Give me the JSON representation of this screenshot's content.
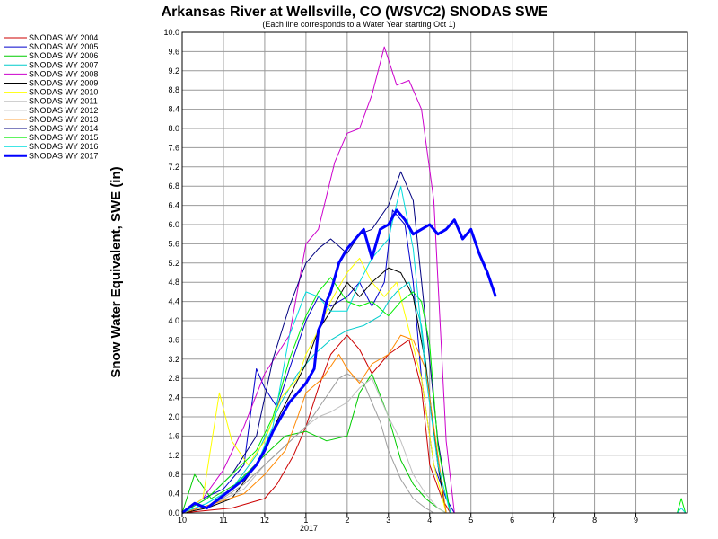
{
  "chart_data": {
    "type": "line",
    "title": "Arkansas River at Wellsville, CO (WSVC2) SNODAS SWE",
    "subtitle": "(Each line corresponds to a Water Year starting Oct 1)",
    "ylabel": "Snow Water Equivalent, SWE (in)",
    "xlabel": "",
    "year_label": "2017",
    "ylim": [
      0,
      10
    ],
    "yticks": [
      "0.0",
      "0.4",
      "0.8",
      "1.2",
      "1.6",
      "2.0",
      "2.4",
      "2.8",
      "3.2",
      "3.6",
      "4.0",
      "4.4",
      "4.8",
      "5.2",
      "5.6",
      "6.0",
      "6.4",
      "6.8",
      "7.2",
      "7.6",
      "8.0",
      "8.4",
      "8.8",
      "9.2",
      "9.6",
      "10.0"
    ],
    "xticks": [
      "10",
      "11",
      "12",
      "1",
      "2",
      "3",
      "4",
      "5",
      "6",
      "7",
      "8",
      "9"
    ],
    "x_unit": "months since Oct 1",
    "xlim": [
      0,
      12.25
    ],
    "grid": true,
    "legend_placement": "left",
    "series": [
      {
        "name": "SNODAS WY 2004",
        "color": "#cc0000",
        "width": 1,
        "x": [
          0,
          1.2,
          2.0,
          2.3,
          2.7,
          3.0,
          3.3,
          3.6,
          4.0,
          4.3,
          4.6,
          5.0,
          5.5,
          5.8,
          6.0,
          6.3,
          6.5
        ],
        "y": [
          0,
          0.1,
          0.3,
          0.6,
          1.2,
          1.8,
          2.6,
          3.3,
          3.7,
          3.4,
          2.9,
          3.3,
          3.6,
          2.6,
          1.0,
          0.3,
          0
        ]
      },
      {
        "name": "SNODAS WY 2005",
        "color": "#0000cc",
        "width": 1,
        "x": [
          0,
          0.5,
          1.0,
          1.5,
          1.8,
          2.0,
          2.3,
          2.6,
          3.0,
          3.3,
          3.6,
          4.0,
          4.3,
          4.6,
          4.9,
          5.1,
          5.4,
          5.6,
          5.8,
          6.1,
          6.4,
          6.6
        ],
        "y": [
          0,
          0.3,
          0.5,
          1.0,
          3.0,
          2.6,
          2.2,
          3.0,
          4.0,
          4.5,
          4.3,
          4.5,
          4.8,
          4.3,
          4.8,
          6.3,
          6.0,
          4.8,
          2.8,
          1.0,
          0.3,
          0
        ]
      },
      {
        "name": "SNODAS WY 2006",
        "color": "#00cc00",
        "width": 1,
        "x": [
          0,
          0.3,
          0.7,
          1.3,
          2.0,
          2.5,
          3.0,
          3.5,
          4.0,
          4.3,
          4.6,
          5.0,
          5.3,
          5.6,
          5.9,
          6.2,
          6.4
        ],
        "y": [
          0,
          0.8,
          0.3,
          0.6,
          1.2,
          1.6,
          1.7,
          1.5,
          1.6,
          2.5,
          2.9,
          2.0,
          1.1,
          0.6,
          0.3,
          0.1,
          0
        ]
      },
      {
        "name": "SNODAS WY 2007",
        "color": "#00cccc",
        "width": 1,
        "x": [
          0,
          0.6,
          1.2,
          1.8,
          2.4,
          2.8,
          3.2,
          3.6,
          4.0,
          4.4,
          4.8,
          5.0,
          5.2,
          5.5,
          5.8,
          6.1,
          6.4
        ],
        "y": [
          0,
          0.2,
          0.5,
          1.2,
          2.3,
          2.9,
          3.3,
          3.6,
          3.8,
          3.9,
          4.1,
          4.4,
          4.6,
          4.8,
          3.9,
          1.7,
          0
        ]
      },
      {
        "name": "SNODAS WY 2008",
        "color": "#cc00cc",
        "width": 1,
        "x": [
          0,
          0.5,
          1.0,
          1.5,
          2.0,
          2.3,
          2.6,
          3.0,
          3.3,
          3.5,
          3.7,
          4.0,
          4.3,
          4.6,
          4.9,
          5.2,
          5.5,
          5.8,
          6.1,
          6.4,
          6.6
        ],
        "y": [
          0,
          0.3,
          0.9,
          1.8,
          2.9,
          3.3,
          3.7,
          5.6,
          5.9,
          6.6,
          7.3,
          7.9,
          8.0,
          8.7,
          9.7,
          8.9,
          9.0,
          8.4,
          6.5,
          1.5,
          0
        ]
      },
      {
        "name": "SNODAS WY 2009",
        "color": "#000000",
        "width": 1,
        "x": [
          0,
          0.6,
          1.2,
          1.8,
          2.4,
          3.0,
          3.3,
          3.6,
          4.0,
          4.3,
          4.6,
          5.0,
          5.3,
          5.6,
          5.9,
          6.2,
          6.4
        ],
        "y": [
          0,
          0.1,
          0.3,
          1.0,
          2.1,
          3.1,
          3.8,
          4.2,
          4.8,
          4.5,
          4.8,
          5.1,
          5.0,
          4.5,
          3.1,
          1.0,
          0
        ]
      },
      {
        "name": "SNODAS WY 2010",
        "color": "#ffff00",
        "width": 1,
        "x": [
          0,
          0.5,
          0.9,
          1.2,
          1.6,
          2.0,
          2.4,
          2.8,
          3.0,
          3.3,
          3.6,
          4.0,
          4.3,
          4.6,
          4.9,
          5.2,
          5.5,
          5.8,
          6.1,
          6.4
        ],
        "y": [
          0,
          0.3,
          2.5,
          1.5,
          1.0,
          1.5,
          2.4,
          2.8,
          3.3,
          3.8,
          4.4,
          5.0,
          5.3,
          4.8,
          4.5,
          4.8,
          3.8,
          2.8,
          1.0,
          0
        ]
      },
      {
        "name": "SNODAS WY 2011",
        "color": "#c0c0c0",
        "width": 1,
        "x": [
          0,
          0.8,
          1.5,
          2.0,
          2.5,
          3.0,
          3.3,
          3.6,
          4.0,
          4.3,
          4.6,
          5.0,
          5.3,
          5.6,
          5.9,
          6.2,
          6.4
        ],
        "y": [
          0,
          0.2,
          0.5,
          1.0,
          1.4,
          1.8,
          2.0,
          2.1,
          2.3,
          2.6,
          2.8,
          2.0,
          1.5,
          0.8,
          0.4,
          0.1,
          0
        ]
      },
      {
        "name": "SNODAS WY 2012",
        "color": "#9d9d9d",
        "width": 1,
        "x": [
          0,
          0.8,
          1.5,
          2.0,
          2.5,
          3.0,
          3.4,
          3.8,
          4.0,
          4.4,
          4.8,
          5.0,
          5.3,
          5.6,
          5.9,
          6.1
        ],
        "y": [
          0,
          0.2,
          0.6,
          1.0,
          1.4,
          1.8,
          2.3,
          2.8,
          2.9,
          2.7,
          1.9,
          1.3,
          0.7,
          0.3,
          0.1,
          0
        ]
      },
      {
        "name": "SNODAS WY 2013",
        "color": "#ff8800",
        "width": 1,
        "x": [
          0,
          0.8,
          1.5,
          2.0,
          2.5,
          2.8,
          3.0,
          3.4,
          3.8,
          4.0,
          4.3,
          4.6,
          5.0,
          5.3,
          5.6,
          5.9,
          6.2,
          6.4
        ],
        "y": [
          0,
          0.2,
          0.4,
          0.8,
          1.3,
          2.0,
          2.5,
          2.8,
          3.3,
          3.0,
          2.7,
          3.1,
          3.3,
          3.7,
          3.6,
          3.0,
          1.2,
          0
        ]
      },
      {
        "name": "SNODAS WY 2014",
        "color": "#000080",
        "width": 1,
        "x": [
          0,
          0.6,
          1.2,
          1.8,
          2.2,
          2.6,
          3.0,
          3.3,
          3.6,
          4.0,
          4.3,
          4.6,
          5.0,
          5.3,
          5.6,
          5.9,
          6.2,
          6.5
        ],
        "y": [
          0,
          0.3,
          0.8,
          1.6,
          3.2,
          4.3,
          5.2,
          5.5,
          5.7,
          5.4,
          5.8,
          5.9,
          6.4,
          7.1,
          6.5,
          4.0,
          1.5,
          0
        ]
      },
      {
        "name": "SNODAS WY 2015",
        "color": "#00ee00",
        "width": 1,
        "x": [
          0,
          0.6,
          1.2,
          1.8,
          2.2,
          2.6,
          3.0,
          3.3,
          3.6,
          4.0,
          4.3,
          4.6,
          5.0,
          5.3,
          5.6,
          5.8,
          6.0,
          6.2,
          6.5,
          12.0,
          12.1,
          12.2
        ],
        "y": [
          0,
          0.3,
          0.8,
          1.3,
          2.0,
          3.2,
          4.1,
          4.6,
          4.9,
          4.4,
          4.3,
          4.4,
          4.1,
          4.4,
          4.6,
          4.4,
          3.5,
          1.4,
          0,
          0,
          0.3,
          0
        ]
      },
      {
        "name": "SNODAS WY 2016",
        "color": "#00dddd",
        "width": 1,
        "x": [
          0,
          0.6,
          1.2,
          1.8,
          2.2,
          2.6,
          3.0,
          3.3,
          3.6,
          4.0,
          4.3,
          4.6,
          5.0,
          5.3,
          5.6,
          5.9,
          6.2,
          6.5,
          12.0,
          12.1,
          12.2
        ],
        "y": [
          0,
          0.2,
          0.5,
          1.0,
          1.8,
          3.7,
          4.6,
          4.5,
          4.2,
          4.2,
          4.8,
          5.3,
          5.7,
          6.8,
          5.5,
          2.9,
          1.0,
          0,
          0,
          0.1,
          0
        ]
      },
      {
        "name": "SNODAS WY 2017",
        "color": "#0000ff",
        "width": 3,
        "x": [
          0,
          0.3,
          0.6,
          0.9,
          1.2,
          1.5,
          1.8,
          2.0,
          2.2,
          2.4,
          2.6,
          2.8,
          3.0,
          3.2,
          3.3,
          3.4,
          3.5,
          3.6,
          3.8,
          4.0,
          4.2,
          4.4,
          4.6,
          4.8,
          5.0,
          5.2,
          5.4,
          5.6,
          5.8,
          6.0,
          6.2,
          6.4,
          6.6,
          6.8,
          7.0,
          7.2,
          7.4,
          7.6
        ],
        "y": [
          0,
          0.2,
          0.1,
          0.3,
          0.5,
          0.7,
          1.0,
          1.3,
          1.7,
          2.0,
          2.3,
          2.5,
          2.7,
          3.0,
          3.8,
          4.0,
          4.4,
          4.6,
          5.2,
          5.5,
          5.7,
          5.9,
          5.3,
          5.9,
          6.0,
          6.3,
          6.1,
          5.8,
          5.9,
          6.0,
          5.8,
          5.9,
          6.1,
          5.7,
          5.9,
          5.4,
          5.0,
          4.5
        ]
      }
    ]
  }
}
